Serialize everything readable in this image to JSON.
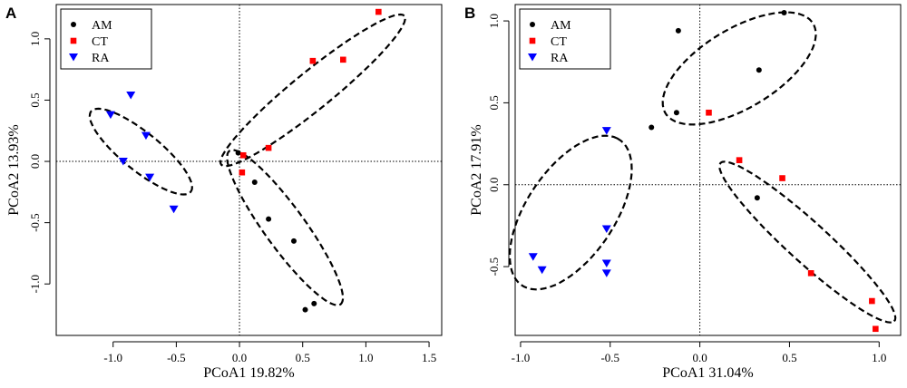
{
  "chart_data": [
    {
      "panel_label": "A",
      "type": "scatter",
      "xlabel": "PCoA1 19.82%",
      "ylabel": "PCoA2 13.93%",
      "xlim": [
        -1.45,
        1.6
      ],
      "ylim": [
        -1.42,
        1.28
      ],
      "xticks": [
        -1.0,
        -0.5,
        0.0,
        0.5,
        1.0,
        1.5
      ],
      "xtick_labels": [
        "-1.0",
        "-0.5",
        "0.0",
        "0.5",
        "1.0",
        "1.5"
      ],
      "yticks": [
        -1.0,
        -0.5,
        0.0,
        0.5,
        1.0
      ],
      "ytick_labels": [
        "-1.0",
        "-0.5",
        "0.0",
        "0.5",
        "1.0"
      ],
      "legend": [
        {
          "name": "AM",
          "color": "#000000",
          "marker": "circle"
        },
        {
          "name": "CT",
          "color": "#ff0000",
          "marker": "square"
        },
        {
          "name": "RA",
          "color": "#0000ff",
          "marker": "triangle-down"
        }
      ],
      "series": [
        {
          "name": "AM",
          "points": [
            [
              -0.01,
              0.07
            ],
            [
              0.12,
              -0.17
            ],
            [
              0.23,
              -0.47
            ],
            [
              0.43,
              -0.65
            ],
            [
              0.59,
              -1.16
            ],
            [
              0.52,
              -1.21
            ]
          ]
        },
        {
          "name": "CT",
          "points": [
            [
              0.03,
              0.05
            ],
            [
              0.02,
              -0.09
            ],
            [
              0.23,
              0.11
            ],
            [
              0.58,
              0.82
            ],
            [
              0.82,
              0.83
            ],
            [
              1.1,
              1.22
            ]
          ]
        },
        {
          "name": "RA",
          "points": [
            [
              -0.86,
              0.54
            ],
            [
              -1.02,
              0.38
            ],
            [
              -0.74,
              0.21
            ],
            [
              -0.92,
              0.0
            ],
            [
              -0.71,
              -0.13
            ],
            [
              -0.52,
              -0.39
            ]
          ]
        }
      ],
      "ellipses": [
        {
          "group": "RA",
          "center": [
            -0.78,
            0.08
          ],
          "semi_major": 0.57,
          "semi_minor": 0.17,
          "angle_deg": -40
        },
        {
          "group": "CT",
          "center": [
            0.58,
            0.58
          ],
          "semi_major": 1.05,
          "semi_minor": 0.17,
          "angle_deg": 40
        },
        {
          "group": "AM",
          "center": [
            0.36,
            -0.54
          ],
          "semi_major": 0.85,
          "semi_minor": 0.18,
          "angle_deg": -55
        }
      ]
    },
    {
      "panel_label": "B",
      "type": "scatter",
      "xlabel": "PCoA1 31.04%",
      "ylabel": "PCoA2 17.91%",
      "xlim": [
        -1.03,
        1.12
      ],
      "ylim": [
        -0.92,
        1.1
      ],
      "xticks": [
        -1.0,
        -0.5,
        0.0,
        0.5,
        1.0
      ],
      "xtick_labels": [
        "-1.0",
        "-0.5",
        "0.0",
        "0.5",
        "1.0"
      ],
      "yticks": [
        -0.5,
        0.0,
        0.5,
        1.0
      ],
      "ytick_labels": [
        "-0.5",
        "0.0",
        "0.5",
        "1.0"
      ],
      "legend": [
        {
          "name": "AM",
          "color": "#000000",
          "marker": "circle"
        },
        {
          "name": "CT",
          "color": "#ff0000",
          "marker": "square"
        },
        {
          "name": "RA",
          "color": "#0000ff",
          "marker": "triangle-down"
        }
      ],
      "series": [
        {
          "name": "AM",
          "points": [
            [
              0.47,
              1.05
            ],
            [
              -0.12,
              0.94
            ],
            [
              0.33,
              0.7
            ],
            [
              -0.13,
              0.44
            ],
            [
              -0.27,
              0.35
            ],
            [
              0.32,
              -0.08
            ]
          ]
        },
        {
          "name": "CT",
          "points": [
            [
              0.05,
              0.44
            ],
            [
              0.22,
              0.15
            ],
            [
              0.46,
              0.04
            ],
            [
              0.62,
              -0.54
            ],
            [
              0.96,
              -0.71
            ],
            [
              0.98,
              -0.88
            ]
          ]
        },
        {
          "name": "RA",
          "points": [
            [
              -0.52,
              0.33
            ],
            [
              -0.52,
              -0.27
            ],
            [
              -0.52,
              -0.48
            ],
            [
              -0.52,
              -0.54
            ],
            [
              -0.93,
              -0.44
            ],
            [
              -0.88,
              -0.52
            ]
          ]
        }
      ],
      "ellipses": [
        {
          "group": "AM",
          "center": [
            0.22,
            0.71
          ],
          "semi_major": 0.55,
          "semi_minor": 0.26,
          "angle_deg": 35
        },
        {
          "group": "RA",
          "center": [
            -0.72,
            -0.17
          ],
          "semi_major": 0.58,
          "semi_minor": 0.28,
          "angle_deg": 60
        },
        {
          "group": "CT",
          "center": [
            0.6,
            -0.35
          ],
          "semi_major": 0.76,
          "semi_minor": 0.13,
          "angle_deg": -45
        }
      ]
    }
  ]
}
